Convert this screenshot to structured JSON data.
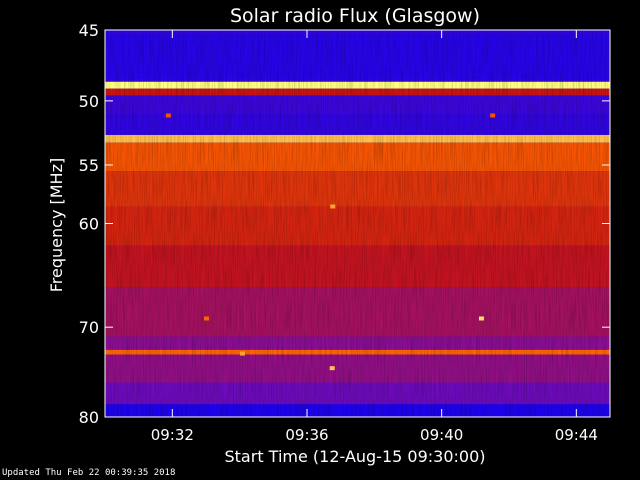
{
  "chart_data": {
    "type": "heatmap",
    "title": "Solar radio Flux (Glasgow)",
    "xlabel": "Start Time (12-Aug-15 09:30:00)",
    "ylabel": "Frequency [MHz]",
    "x_unit": "time",
    "xlim": [
      "09:30:00",
      "09:45:00"
    ],
    "ylim": [
      45,
      80
    ],
    "y_scale": "log",
    "y_inverted": true,
    "x_ticks": [
      "09:32",
      "09:36",
      "09:40",
      "09:44"
    ],
    "y_ticks": [
      45,
      50,
      55,
      60,
      70,
      80
    ],
    "colormap": [
      "#0000ff",
      "#7a0db0",
      "#c81414",
      "#ff6400",
      "#ffff80"
    ],
    "frequency_bands": [
      {
        "from": 45.3,
        "to": 48.4,
        "level": 0.08
      },
      {
        "from": 48.6,
        "to": 49.1,
        "level": 1.0
      },
      {
        "from": 49.1,
        "to": 49.6,
        "level": 0.5
      },
      {
        "from": 49.6,
        "to": 51.0,
        "level": 0.12
      },
      {
        "from": 51.0,
        "to": 52.6,
        "level": 0.1
      },
      {
        "from": 52.6,
        "to": 53.2,
        "level": 0.9
      },
      {
        "from": 53.2,
        "to": 55.5,
        "level": 0.7
      },
      {
        "from": 55.5,
        "to": 58.5,
        "level": 0.6
      },
      {
        "from": 58.5,
        "to": 62.0,
        "level": 0.55
      },
      {
        "from": 62.0,
        "to": 66.0,
        "level": 0.48
      },
      {
        "from": 66.0,
        "to": 71.0,
        "level": 0.38
      },
      {
        "from": 71.0,
        "to": 72.4,
        "level": 0.3
      },
      {
        "from": 72.4,
        "to": 72.9,
        "level": 0.75
      },
      {
        "from": 72.9,
        "to": 76.0,
        "level": 0.32
      },
      {
        "from": 76.0,
        "to": 78.5,
        "level": 0.22
      },
      {
        "from": 78.5,
        "to": 80.0,
        "level": 0.06
      }
    ],
    "spots": [
      {
        "time": "09:31:52",
        "freq": 51.1,
        "level": 0.7
      },
      {
        "time": "09:41:30",
        "freq": 51.1,
        "level": 0.7
      },
      {
        "time": "09:36:45",
        "freq": 58.5,
        "level": 0.85
      },
      {
        "time": "09:34:04",
        "freq": 72.8,
        "level": 0.85
      },
      {
        "time": "09:36:44",
        "freq": 74.4,
        "level": 0.9
      },
      {
        "time": "09:41:10",
        "freq": 69.1,
        "level": 0.95
      },
      {
        "time": "09:33:00",
        "freq": 69.1,
        "level": 0.75
      }
    ]
  },
  "footer": "Updated Thu Feb 22 00:39:35 2018"
}
